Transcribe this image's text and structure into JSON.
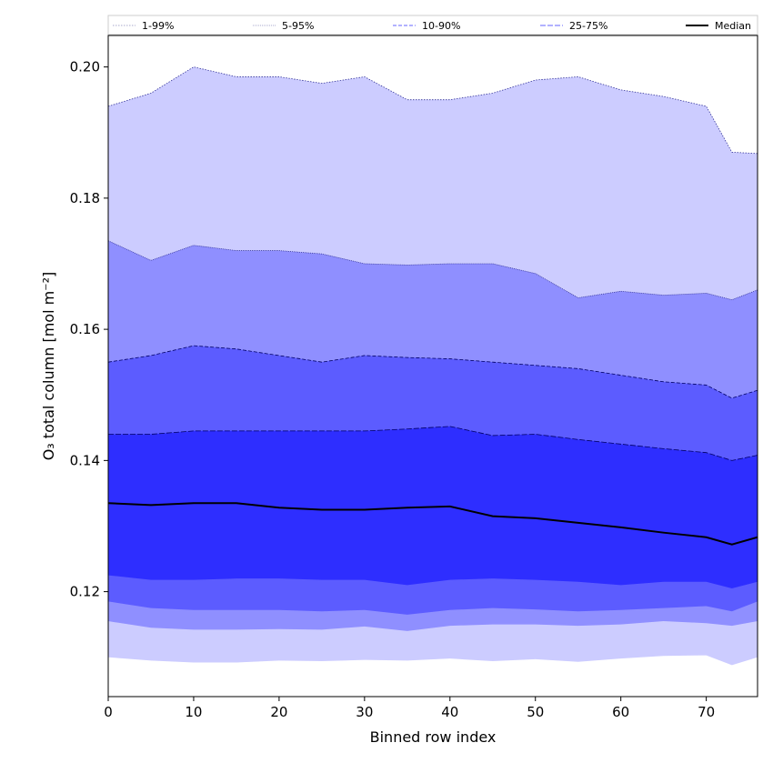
{
  "chart_data": {
    "type": "area",
    "xlabel": "Binned row index",
    "ylabel": "O₃ total column [mol m⁻²]",
    "xlim": [
      0,
      76
    ],
    "ylim": [
      0.104,
      0.2048
    ],
    "xticks": [
      0,
      10,
      20,
      30,
      40,
      50,
      60,
      70
    ],
    "yticks": [
      0.12,
      0.14,
      0.16,
      0.18,
      0.2
    ],
    "ytick_labels": [
      "0.12",
      "0.14",
      "0.16",
      "0.18",
      "0.20"
    ],
    "grid": false,
    "legend_placement": "top",
    "x": [
      0,
      5,
      10,
      15,
      20,
      25,
      30,
      35,
      40,
      45,
      50,
      55,
      60,
      65,
      70,
      73,
      76
    ],
    "bands": [
      {
        "name": "1-99%",
        "color": "#ccccff",
        "edge_color": "#333399",
        "dash": "1.5,1.5",
        "upper": [
          0.194,
          0.196,
          0.2,
          0.1985,
          0.1985,
          0.1975,
          0.1985,
          0.195,
          0.195,
          0.196,
          0.198,
          0.1985,
          0.1965,
          0.1955,
          0.194,
          0.187,
          0.1868
        ],
        "lower": [
          0.11,
          0.1095,
          0.1092,
          0.1092,
          0.1095,
          0.1094,
          0.1096,
          0.1095,
          0.1098,
          0.1094,
          0.1097,
          0.1093,
          0.1098,
          0.1102,
          0.1103,
          0.1088,
          0.11
        ]
      },
      {
        "name": "5-95%",
        "color": "#8f8fff",
        "edge_color": "#333399",
        "dash": "1,1",
        "upper": [
          0.1735,
          0.1705,
          0.1728,
          0.172,
          0.172,
          0.1715,
          0.17,
          0.1698,
          0.17,
          0.17,
          0.1685,
          0.1648,
          0.1658,
          0.1652,
          0.1655,
          0.1645,
          0.166
        ],
        "lower": [
          0.1155,
          0.1145,
          0.1142,
          0.1142,
          0.1143,
          0.1142,
          0.1147,
          0.114,
          0.1148,
          0.115,
          0.115,
          0.1148,
          0.115,
          0.1155,
          0.1152,
          0.1148,
          0.1155
        ]
      },
      {
        "name": "10-90%",
        "color": "#5c5cff",
        "edge_color": "#000066",
        "dash": "4,2",
        "upper": [
          0.155,
          0.156,
          0.1575,
          0.157,
          0.156,
          0.155,
          0.156,
          0.1557,
          0.1555,
          0.155,
          0.1545,
          0.154,
          0.153,
          0.152,
          0.1515,
          0.1495,
          0.1507
        ],
        "lower": [
          0.1185,
          0.1175,
          0.1172,
          0.1172,
          0.1172,
          0.117,
          0.1172,
          0.1165,
          0.1172,
          0.1175,
          0.1173,
          0.117,
          0.1172,
          0.1175,
          0.1178,
          0.117,
          0.1185
        ]
      },
      {
        "name": "25-75%",
        "color": "#2e2eff",
        "edge_color": "#000066",
        "dash": "6,2",
        "upper": [
          0.144,
          0.144,
          0.1445,
          0.1445,
          0.1445,
          0.1445,
          0.1445,
          0.1448,
          0.1452,
          0.1438,
          0.144,
          0.1432,
          0.1425,
          0.1418,
          0.1412,
          0.14,
          0.1408
        ],
        "lower": [
          0.1225,
          0.1218,
          0.1218,
          0.122,
          0.122,
          0.1218,
          0.1218,
          0.121,
          0.1218,
          0.122,
          0.1218,
          0.1215,
          0.121,
          0.1215,
          0.1215,
          0.1205,
          0.1215
        ]
      }
    ],
    "median": {
      "name": "Median",
      "color": "#000000",
      "values": [
        0.1335,
        0.1332,
        0.1335,
        0.1335,
        0.1328,
        0.1325,
        0.1325,
        0.1328,
        0.133,
        0.1315,
        0.1312,
        0.1305,
        0.1298,
        0.129,
        0.1283,
        0.1272,
        0.1283
      ]
    },
    "legend": [
      "1-99%",
      "5-95%",
      "10-90%",
      "25-75%",
      "Median"
    ]
  }
}
